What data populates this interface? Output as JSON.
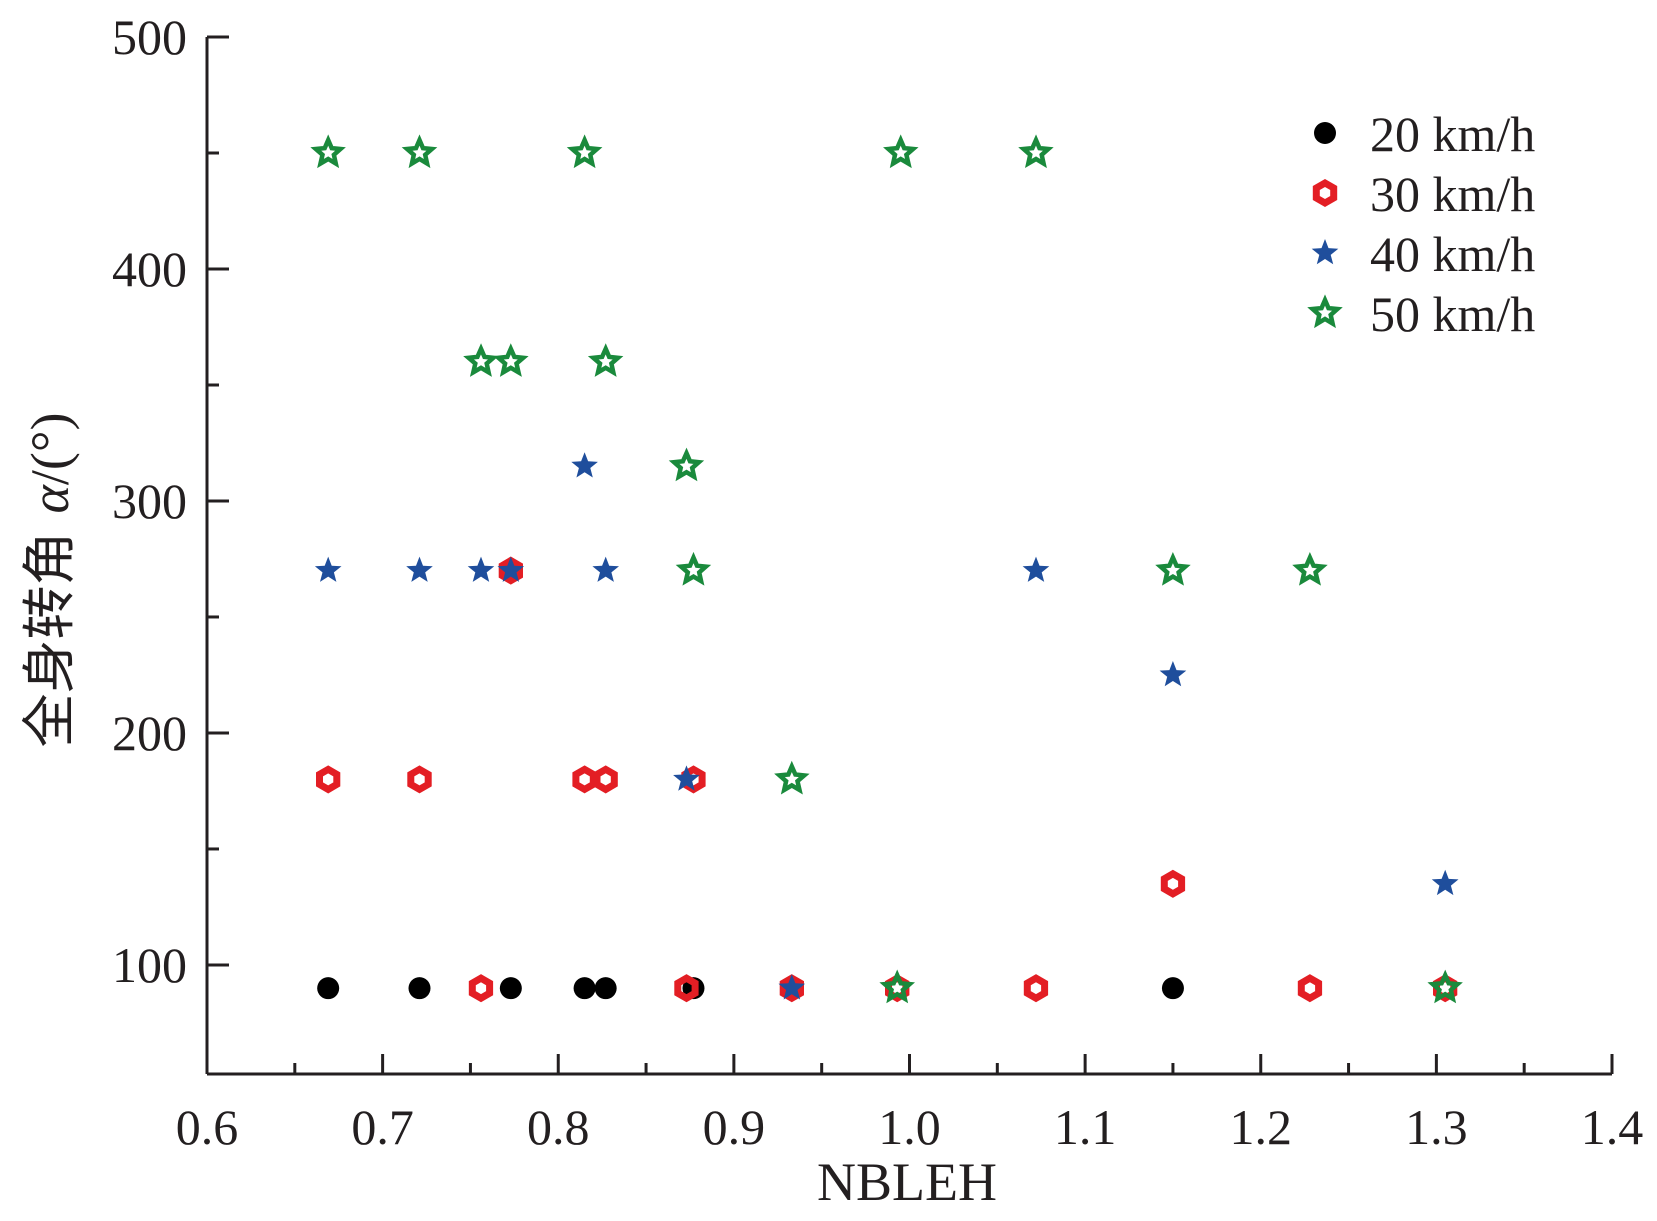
{
  "chart_data": {
    "type": "scatter",
    "xlabel": "NBLEH",
    "ylabel": "全身转角 α/(°)",
    "ylabel_parts": {
      "text": "全身转角",
      "symbol": "α",
      "unit": "/(°)"
    },
    "xlim": [
      0.6,
      1.4
    ],
    "ylim": [
      53,
      500
    ],
    "x_ticks": [
      0.6,
      0.7,
      0.8,
      0.9,
      1.0,
      1.1,
      1.2,
      1.3,
      1.4
    ],
    "x_tick_labels": [
      "0.6",
      "0.7",
      "0.8",
      "0.9",
      "1.0",
      "1.1",
      "1.2",
      "1.3",
      "1.4"
    ],
    "y_ticks": [
      100,
      200,
      300,
      400,
      500
    ],
    "y_tick_labels": [
      "100",
      "200",
      "300",
      "400",
      "500"
    ],
    "y_minor_ticks": [
      150,
      250,
      350,
      450
    ],
    "grid": false,
    "legend_position": "top-right",
    "series": [
      {
        "name": "20 km/h",
        "marker": "filled-circle",
        "color": "#000000",
        "points": [
          {
            "x": 0.669,
            "y": 90
          },
          {
            "x": 0.721,
            "y": 90
          },
          {
            "x": 0.773,
            "y": 90
          },
          {
            "x": 0.815,
            "y": 90
          },
          {
            "x": 0.827,
            "y": 90
          },
          {
            "x": 0.877,
            "y": 90
          },
          {
            "x": 1.15,
            "y": 90
          }
        ]
      },
      {
        "name": "30 km/h",
        "marker": "hollow-hexagon",
        "color": "#e31e24",
        "points": [
          {
            "x": 0.669,
            "y": 180
          },
          {
            "x": 0.721,
            "y": 180
          },
          {
            "x": 0.815,
            "y": 180
          },
          {
            "x": 0.827,
            "y": 180
          },
          {
            "x": 0.877,
            "y": 180
          },
          {
            "x": 0.773,
            "y": 270
          },
          {
            "x": 0.756,
            "y": 90
          },
          {
            "x": 0.873,
            "y": 90
          },
          {
            "x": 0.933,
            "y": 90
          },
          {
            "x": 0.993,
            "y": 90
          },
          {
            "x": 1.072,
            "y": 90
          },
          {
            "x": 1.228,
            "y": 90
          },
          {
            "x": 1.305,
            "y": 90
          },
          {
            "x": 1.15,
            "y": 135
          }
        ]
      },
      {
        "name": "40 km/h",
        "marker": "filled-star",
        "color": "#1f4e9c",
        "points": [
          {
            "x": 0.669,
            "y": 270
          },
          {
            "x": 0.721,
            "y": 270
          },
          {
            "x": 0.756,
            "y": 270
          },
          {
            "x": 0.773,
            "y": 270
          },
          {
            "x": 0.827,
            "y": 270
          },
          {
            "x": 1.072,
            "y": 270
          },
          {
            "x": 0.815,
            "y": 315
          },
          {
            "x": 0.873,
            "y": 180
          },
          {
            "x": 1.15,
            "y": 225
          },
          {
            "x": 0.933,
            "y": 90
          },
          {
            "x": 1.305,
            "y": 135
          }
        ]
      },
      {
        "name": "50 km/h",
        "marker": "hollow-star",
        "color": "#1a8a3c",
        "points": [
          {
            "x": 0.669,
            "y": 450
          },
          {
            "x": 0.721,
            "y": 450
          },
          {
            "x": 0.815,
            "y": 450
          },
          {
            "x": 0.995,
            "y": 450
          },
          {
            "x": 1.072,
            "y": 450
          },
          {
            "x": 0.756,
            "y": 360
          },
          {
            "x": 0.773,
            "y": 360
          },
          {
            "x": 0.827,
            "y": 360
          },
          {
            "x": 0.873,
            "y": 315
          },
          {
            "x": 0.877,
            "y": 270
          },
          {
            "x": 1.15,
            "y": 270
          },
          {
            "x": 1.228,
            "y": 270
          },
          {
            "x": 0.933,
            "y": 180
          },
          {
            "x": 0.993,
            "y": 90
          },
          {
            "x": 1.305,
            "y": 90
          }
        ]
      }
    ]
  }
}
